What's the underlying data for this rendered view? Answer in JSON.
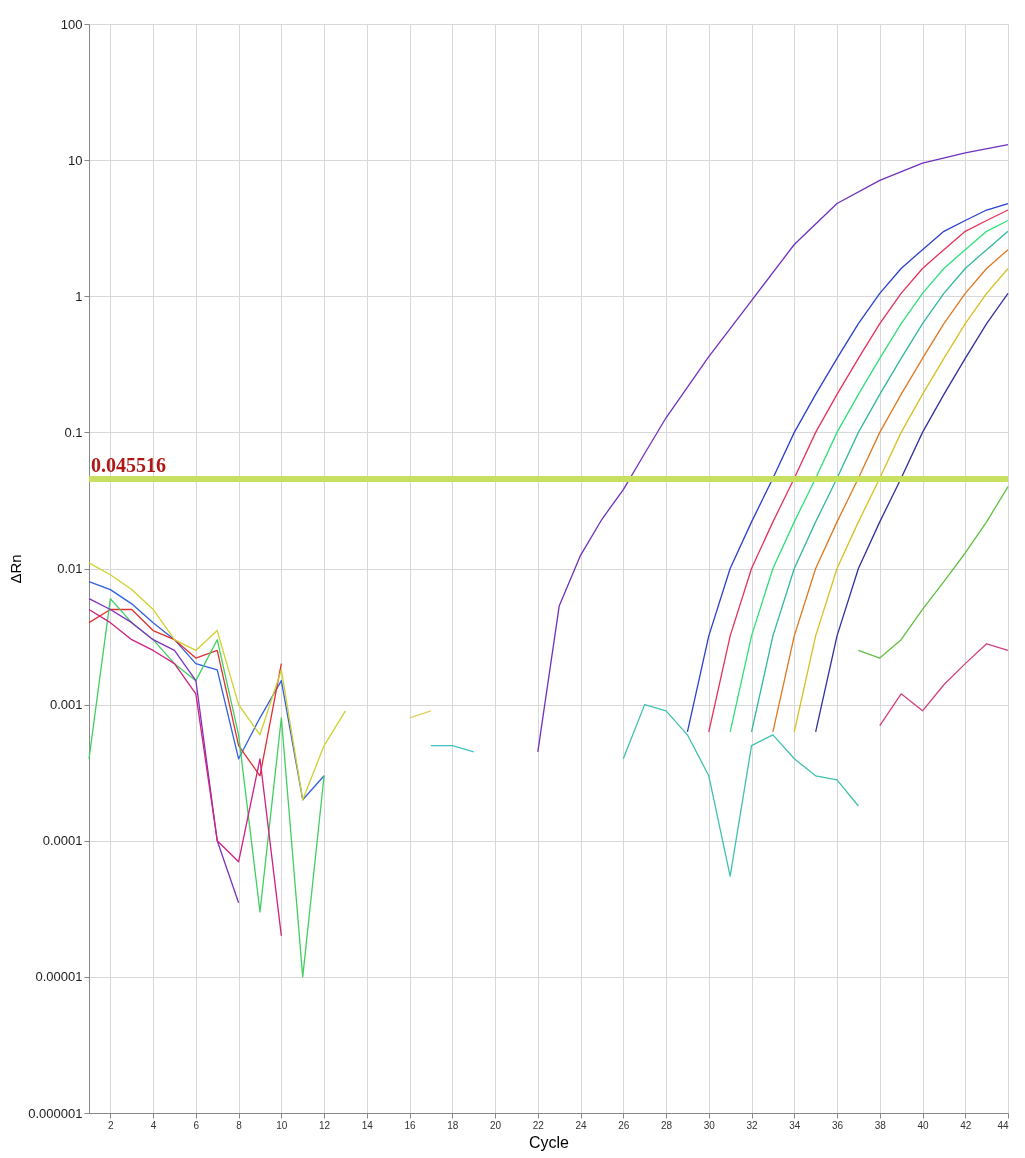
{
  "chart_data": {
    "type": "line",
    "xlabel": "Cycle",
    "ylabel": "ΔRn",
    "log": "y",
    "grid": true,
    "marker": "none",
    "line_style": "solid",
    "xlim": [
      1,
      44
    ],
    "xticks": [
      2,
      4,
      6,
      8,
      10,
      12,
      14,
      16,
      18,
      20,
      22,
      24,
      26,
      28,
      30,
      32,
      34,
      36,
      38,
      40,
      42,
      44
    ],
    "ylim": [
      1e-06,
      100
    ],
    "yticks": [
      {
        "value": 100,
        "label": "100"
      },
      {
        "value": 10,
        "label": "10"
      },
      {
        "value": 1,
        "label": "1"
      },
      {
        "value": 0.1,
        "label": "0.1"
      },
      {
        "value": 0.01,
        "label": "0.01"
      },
      {
        "value": 0.001,
        "label": "0.001"
      },
      {
        "value": 0.0001,
        "label": "0.0001"
      },
      {
        "value": 1e-05,
        "label": "0.00001"
      },
      {
        "value": 1e-06,
        "label": "0.000001"
      }
    ],
    "ref_lines": [
      {
        "axis": "y",
        "value": 0.045516,
        "label": "0.045516",
        "color": "#c8e060"
      }
    ],
    "series": [
      {
        "color": "#7030c0",
        "x": [
          22,
          23,
          24,
          25,
          26,
          27,
          28,
          30,
          32,
          34,
          36,
          38,
          40,
          42,
          44
        ],
        "values": [
          0.00045,
          0.0053,
          0.0125,
          0.023,
          0.038,
          0.07,
          0.128,
          0.36,
          0.93,
          2.4,
          4.8,
          7.1,
          9.5,
          11.3,
          13
        ]
      },
      {
        "color": "#2b3fd0",
        "x": [
          29,
          30,
          31,
          32,
          33,
          34,
          35,
          36,
          37,
          38,
          39,
          40,
          41,
          42,
          43,
          44
        ],
        "values": [
          0.00063,
          0.0032,
          0.01,
          0.022,
          0.046,
          0.1,
          0.19,
          0.35,
          0.63,
          1.05,
          1.6,
          2.2,
          3.0,
          3.6,
          4.3,
          4.8
        ]
      },
      {
        "color": "#e8305a",
        "x": [
          30,
          31,
          32,
          33,
          34,
          35,
          36,
          37,
          38,
          39,
          40,
          41,
          42,
          43,
          44
        ],
        "values": [
          0.00063,
          0.0032,
          0.01,
          0.022,
          0.046,
          0.1,
          0.19,
          0.35,
          0.63,
          1.05,
          1.6,
          2.2,
          3.0,
          3.6,
          4.3
        ]
      },
      {
        "color": "#2ee07a",
        "x": [
          31,
          32,
          33,
          34,
          35,
          36,
          37,
          38,
          39,
          40,
          41,
          42,
          43,
          44
        ],
        "values": [
          0.00063,
          0.0032,
          0.01,
          0.022,
          0.046,
          0.1,
          0.19,
          0.35,
          0.63,
          1.05,
          1.6,
          2.2,
          3.0,
          3.6
        ]
      },
      {
        "color": "#30b8a0",
        "x": [
          32,
          33,
          34,
          35,
          36,
          37,
          38,
          39,
          40,
          41,
          42,
          43,
          44
        ],
        "values": [
          0.00063,
          0.0032,
          0.01,
          0.022,
          0.046,
          0.1,
          0.19,
          0.35,
          0.63,
          1.05,
          1.6,
          2.2,
          3.0
        ]
      },
      {
        "color": "#e07820",
        "x": [
          33,
          34,
          35,
          36,
          37,
          38,
          39,
          40,
          41,
          42,
          43,
          44
        ],
        "values": [
          0.00063,
          0.0032,
          0.01,
          0.022,
          0.046,
          0.1,
          0.19,
          0.35,
          0.63,
          1.05,
          1.6,
          2.2
        ]
      },
      {
        "color": "#d8c020",
        "x": [
          34,
          35,
          36,
          37,
          38,
          39,
          40,
          41,
          42,
          43,
          44
        ],
        "values": [
          0.00063,
          0.0032,
          0.01,
          0.022,
          0.046,
          0.1,
          0.19,
          0.35,
          0.63,
          1.05,
          1.6
        ]
      },
      {
        "color": "#3030a0",
        "x": [
          35,
          36,
          37,
          38,
          39,
          40,
          41,
          42,
          43,
          44
        ],
        "values": [
          0.00063,
          0.0032,
          0.01,
          0.022,
          0.046,
          0.1,
          0.19,
          0.35,
          0.63,
          1.05
        ]
      },
      {
        "color": "#60c040",
        "x": [
          37,
          38,
          39,
          40,
          41,
          42,
          43,
          44
        ],
        "values": [
          0.0025,
          0.0022,
          0.003,
          0.005,
          0.008,
          0.013,
          0.022,
          0.04
        ]
      },
      {
        "color": "#d04080",
        "x": [
          38,
          39,
          40,
          41,
          42,
          43,
          44
        ],
        "values": [
          0.0007,
          0.0012,
          0.0009,
          0.0014,
          0.002,
          0.0028,
          0.0025
        ]
      },
      {
        "color": "#40c0b0",
        "x": [
          26,
          27,
          28,
          29,
          30,
          31,
          32,
          33,
          34,
          35,
          36,
          37
        ],
        "values": [
          0.0004,
          0.001,
          0.0009,
          0.0006,
          0.0003,
          5.5e-05,
          0.0005,
          0.0006,
          0.0004,
          0.0003,
          0.00028,
          0.00018
        ]
      },
      {
        "color": "#3060e0",
        "x": [
          1,
          2,
          3,
          4,
          5,
          6,
          7,
          8,
          9,
          10,
          11,
          12
        ],
        "values": [
          0.008,
          0.007,
          0.0055,
          0.004,
          0.003,
          0.002,
          0.0018,
          0.0004,
          0.0008,
          0.0015,
          0.0002,
          0.0003
        ]
      },
      {
        "color": "#e03030",
        "x": [
          1,
          2,
          3,
          4,
          5,
          6,
          7,
          8,
          9,
          10
        ],
        "values": [
          0.004,
          0.005,
          0.005,
          0.0035,
          0.003,
          0.0022,
          0.0025,
          0.0005,
          0.0003,
          0.002
        ]
      },
      {
        "color": "#40d060",
        "x": [
          1,
          2,
          3,
          4,
          5,
          6,
          7,
          8,
          9,
          10,
          11,
          12
        ],
        "values": [
          0.0004,
          0.006,
          0.004,
          0.003,
          0.002,
          0.0015,
          0.003,
          0.0006,
          3e-05,
          0.0008,
          1e-05,
          0.0003
        ]
      },
      {
        "color": "#d0d030",
        "x": [
          1,
          2,
          3,
          4,
          5,
          6,
          7,
          8,
          9,
          10,
          11,
          12,
          13
        ],
        "values": [
          0.011,
          0.009,
          0.007,
          0.005,
          0.003,
          0.0025,
          0.0035,
          0.001,
          0.0006,
          0.0018,
          0.0002,
          0.0005,
          0.0009
        ]
      },
      {
        "color": "#8030c0",
        "x": [
          1,
          2,
          3,
          4,
          5,
          6,
          7,
          8
        ],
        "values": [
          0.006,
          0.005,
          0.004,
          0.003,
          0.0025,
          0.0015,
          0.0001,
          3.5e-05
        ]
      },
      {
        "color": "#d02080",
        "x": [
          1,
          2,
          3,
          4,
          5,
          6,
          7,
          8,
          9,
          10
        ],
        "values": [
          0.005,
          0.004,
          0.003,
          0.0025,
          0.002,
          0.0012,
          0.0001,
          7e-05,
          0.0004,
          2e-05
        ]
      },
      {
        "color": "#40c0c0",
        "x": [
          17,
          18,
          19
        ],
        "values": [
          0.0005,
          0.0005,
          0.00045
        ]
      },
      {
        "color": "#e0d060",
        "x": [
          16,
          17
        ],
        "values": [
          0.0008,
          0.0009
        ]
      }
    ]
  }
}
